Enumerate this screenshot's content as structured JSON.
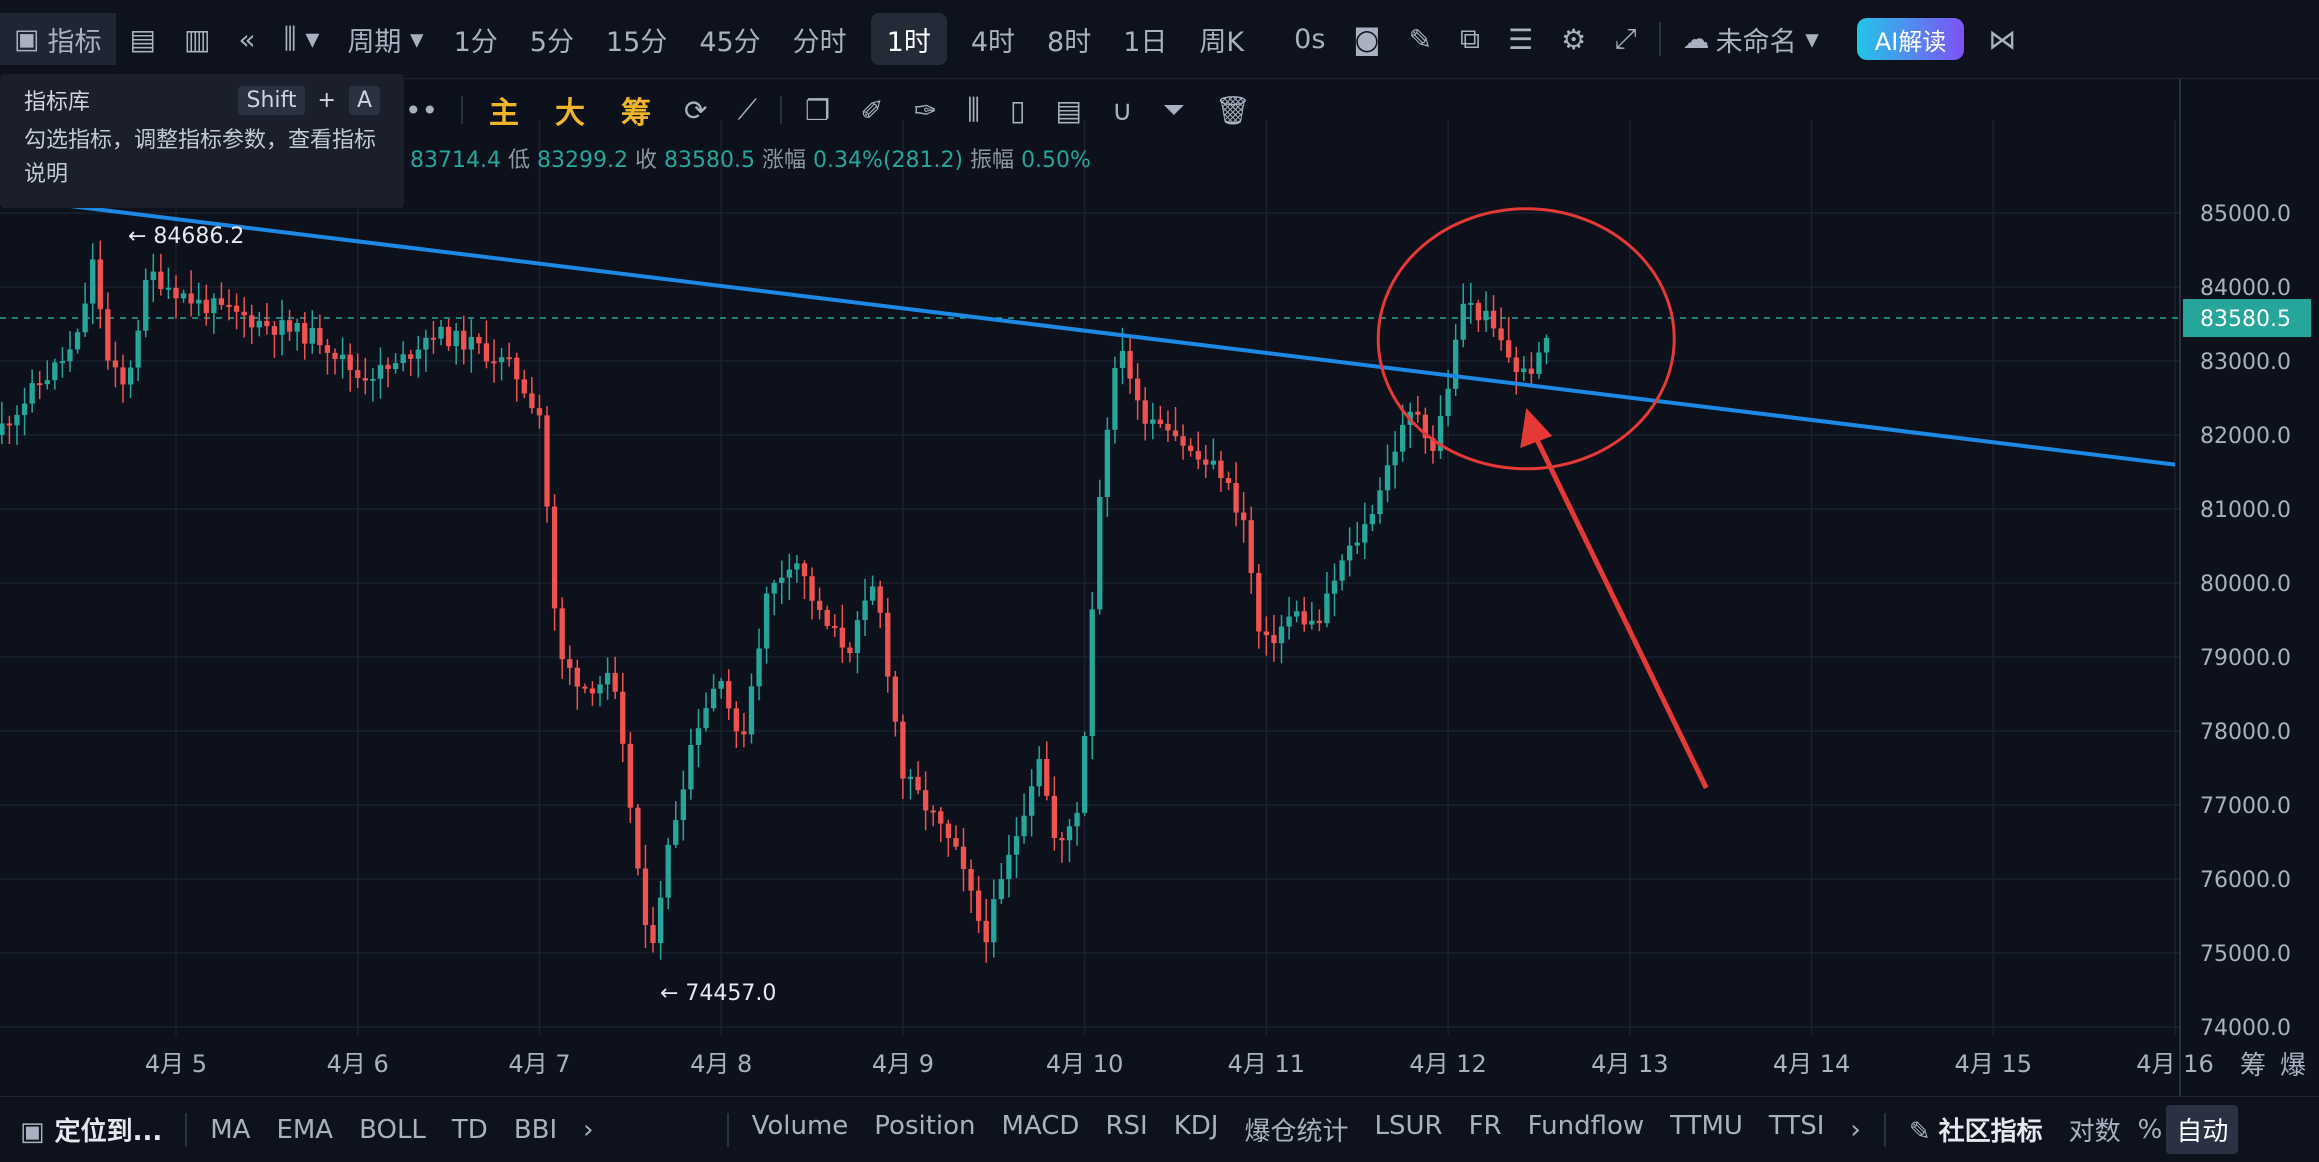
{
  "topbar": {
    "indicator_label": "指标",
    "period_label": "周期",
    "timeframes": [
      "1分",
      "5分",
      "15分",
      "45分",
      "分时",
      "1时",
      "4时",
      "8时",
      "1日",
      "周K"
    ],
    "active_timeframe": "1时",
    "countdown": "0s",
    "layout_name": "未命名",
    "ai_button": "AI解读"
  },
  "toolbar2": {
    "main_label": "主",
    "big_label": "大",
    "chip_label": "筹"
  },
  "tooltip": {
    "title": "指标库",
    "shortcut_key1": "Shift",
    "shortcut_plus": "+",
    "shortcut_key2": "A",
    "description": "勾选指标，调整指标参数，查看指标说明"
  },
  "ohlc": {
    "high": "83714.4",
    "low_label": "低",
    "low": "83299.2",
    "close_label": "收",
    "close": "83580.5",
    "change_label": "涨幅",
    "change": "0.34%(281.2)",
    "amplitude_label": "振幅",
    "amplitude": "0.50%"
  },
  "bottombar": {
    "locate": "定位到...",
    "main_indicators": [
      "MA",
      "EMA",
      "BOLL",
      "TD",
      "BBI"
    ],
    "sub_indicators": [
      "Volume",
      "Position",
      "MACD",
      "RSI",
      "KDJ",
      "爆仓统计",
      "LSUR",
      "FR",
      "Fundflow",
      "TTMU",
      "TTSI"
    ],
    "community": "社区指标",
    "log_label": "对数",
    "percent_label": "%",
    "auto_label": "自动"
  },
  "colors": {
    "up": "#26a69a",
    "down": "#ef5350",
    "trendline": "#1e88e5",
    "annotation": "#e53935",
    "price_tag": "#26a69a"
  },
  "chart_data": {
    "type": "candlestick",
    "instrument_timeframe": "1时",
    "ylim": [
      74000,
      85500
    ],
    "y_ticks": [
      "85000.0",
      "84000.0",
      "83000.0",
      "82000.0",
      "81000.0",
      "80000.0",
      "79000.0",
      "78000.0",
      "77000.0",
      "76000.0",
      "75000.0",
      "74000.0"
    ],
    "x_ticks": [
      "4月 5",
      "4月 6",
      "4月 7",
      "4月 8",
      "4月 9",
      "4月 10",
      "4月 11",
      "4月 12",
      "4月 13",
      "4月 14",
      "4月 15",
      "4月 16"
    ],
    "last_price": "83580.5",
    "high_marker": "84686.2",
    "low_marker": "74457.0",
    "right_labels": [
      "筹",
      "爆"
    ],
    "anchors": [
      [
        4.0,
        82000
      ],
      [
        4.25,
        82700
      ],
      [
        4.45,
        83200
      ],
      [
        4.55,
        84400
      ],
      [
        4.62,
        83000
      ],
      [
        4.72,
        82600
      ],
      [
        4.85,
        84200
      ],
      [
        5.1,
        83800
      ],
      [
        5.5,
        83500
      ],
      [
        5.8,
        83300
      ],
      [
        6.0,
        82800
      ],
      [
        6.2,
        82900
      ],
      [
        6.4,
        83400
      ],
      [
        6.65,
        83200
      ],
      [
        6.85,
        82900
      ],
      [
        7.0,
        82300
      ],
      [
        7.05,
        80800
      ],
      [
        7.1,
        79000
      ],
      [
        7.25,
        78600
      ],
      [
        7.4,
        78700
      ],
      [
        7.5,
        77000
      ],
      [
        7.6,
        74900
      ],
      [
        7.7,
        76300
      ],
      [
        7.85,
        78000
      ],
      [
        8.0,
        78800
      ],
      [
        8.1,
        77700
      ],
      [
        8.25,
        79800
      ],
      [
        8.4,
        80400
      ],
      [
        8.55,
        79500
      ],
      [
        8.7,
        79100
      ],
      [
        8.85,
        80000
      ],
      [
        9.0,
        77400
      ],
      [
        9.15,
        76900
      ],
      [
        9.3,
        76300
      ],
      [
        9.45,
        75200
      ],
      [
        9.6,
        76400
      ],
      [
        9.75,
        77700
      ],
      [
        9.85,
        76300
      ],
      [
        9.98,
        77100
      ],
      [
        10.03,
        79300
      ],
      [
        10.1,
        81800
      ],
      [
        10.2,
        83300
      ],
      [
        10.3,
        82300
      ],
      [
        10.45,
        82200
      ],
      [
        10.6,
        81700
      ],
      [
        10.75,
        81500
      ],
      [
        10.88,
        80800
      ],
      [
        10.97,
        79100
      ],
      [
        11.05,
        79300
      ],
      [
        11.15,
        79600
      ],
      [
        11.28,
        79400
      ],
      [
        11.4,
        80200
      ],
      [
        11.55,
        80800
      ],
      [
        11.7,
        81800
      ],
      [
        11.82,
        82400
      ],
      [
        11.92,
        81800
      ],
      [
        12.02,
        82900
      ],
      [
        12.08,
        83800
      ],
      [
        12.2,
        83600
      ],
      [
        12.3,
        83200
      ],
      [
        12.4,
        82800
      ],
      [
        12.5,
        83000
      ],
      [
        12.58,
        83580
      ]
    ],
    "trendline": {
      "x": [
        4.4,
        16.0
      ],
      "y": [
        85100,
        81600
      ]
    },
    "annotation": {
      "type": "ellipse-and-arrow",
      "center": [
        12.43,
        83300
      ],
      "arrow_target": [
        12.43,
        82500
      ]
    }
  }
}
